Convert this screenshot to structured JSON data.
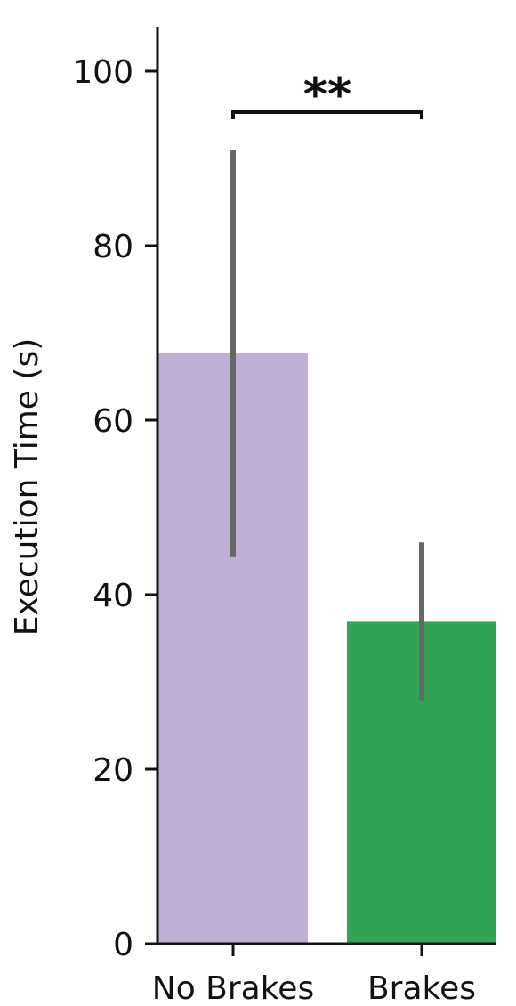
{
  "chart_data": {
    "type": "bar",
    "categories": [
      "No Brakes",
      "Brakes"
    ],
    "values": [
      67.7,
      36.9
    ],
    "error_low": [
      44.3,
      27.9
    ],
    "error_high": [
      91.0,
      46.0
    ],
    "colors": [
      "#bfafd4",
      "#33a455"
    ],
    "error_color": "#666666",
    "ylabel": "Execution Time (s)",
    "xlabel": "",
    "ylim": [
      0,
      105
    ],
    "yticks": [
      0,
      20,
      40,
      60,
      80,
      100
    ],
    "grid": false,
    "significance": {
      "label": "**",
      "between": [
        0,
        1
      ],
      "y": 95.3
    }
  }
}
